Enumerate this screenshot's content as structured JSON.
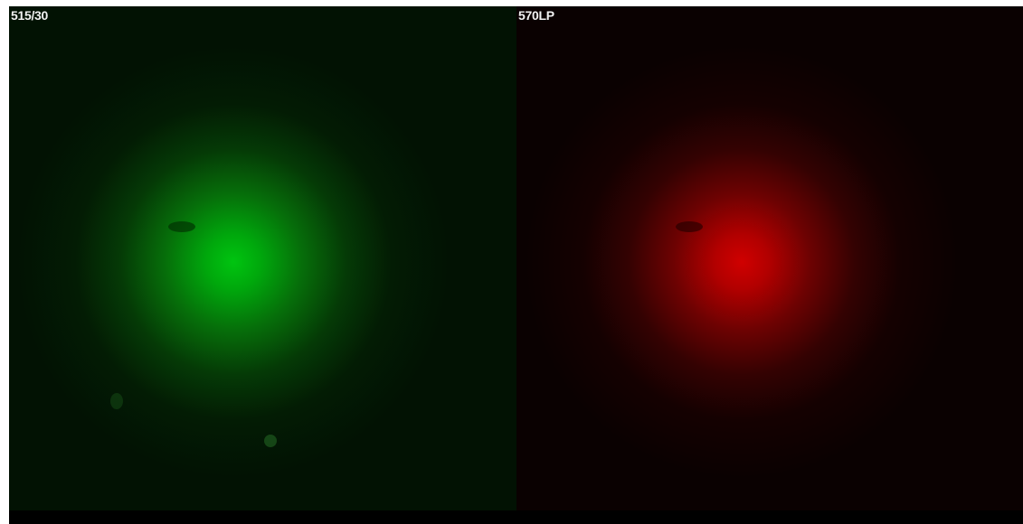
{
  "panels": [
    {
      "label": "515/30"
    },
    {
      "label": "570LP"
    }
  ]
}
